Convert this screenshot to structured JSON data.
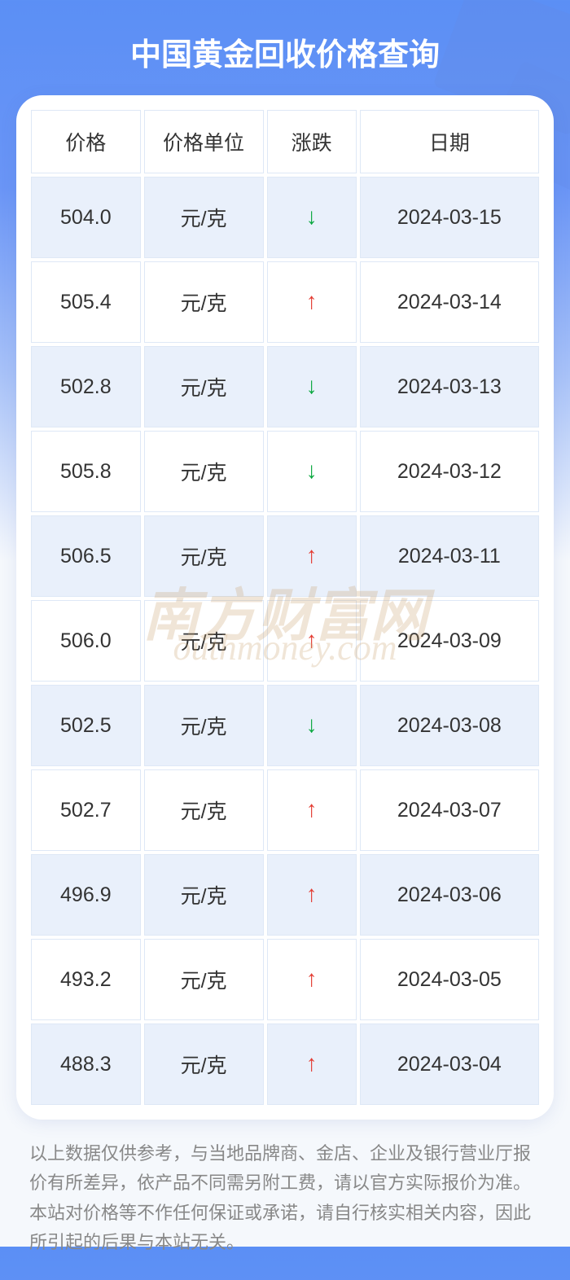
{
  "title": "中国黄金回收价格查询",
  "table": {
    "columns": [
      "价格",
      "价格单位",
      "涨跌",
      "日期"
    ],
    "rows": [
      {
        "price": "504.0",
        "unit": "元/克",
        "trend": "down",
        "date": "2024-03-15"
      },
      {
        "price": "505.4",
        "unit": "元/克",
        "trend": "up",
        "date": "2024-03-14"
      },
      {
        "price": "502.8",
        "unit": "元/克",
        "trend": "down",
        "date": "2024-03-13"
      },
      {
        "price": "505.8",
        "unit": "元/克",
        "trend": "down",
        "date": "2024-03-12"
      },
      {
        "price": "506.5",
        "unit": "元/克",
        "trend": "up",
        "date": "2024-03-11"
      },
      {
        "price": "506.0",
        "unit": "元/克",
        "trend": "up",
        "date": "2024-03-09"
      },
      {
        "price": "502.5",
        "unit": "元/克",
        "trend": "down",
        "date": "2024-03-08"
      },
      {
        "price": "502.7",
        "unit": "元/克",
        "trend": "up",
        "date": "2024-03-07"
      },
      {
        "price": "496.9",
        "unit": "元/克",
        "trend": "up",
        "date": "2024-03-06"
      },
      {
        "price": "493.2",
        "unit": "元/克",
        "trend": "up",
        "date": "2024-03-05"
      },
      {
        "price": "488.3",
        "unit": "元/克",
        "trend": "up",
        "date": "2024-03-04"
      }
    ]
  },
  "arrows": {
    "up": "↑",
    "down": "↓"
  },
  "colors": {
    "title_text": "#ffffff",
    "bg_gradient_top": "#5b8ff5",
    "bg_gradient_bottom": "#f5f8fc",
    "card_bg": "#ffffff",
    "row_even_bg": "#e9f0fb",
    "row_odd_bg": "#ffffff",
    "cell_border": "#dee8f6",
    "text": "#333333",
    "up_color": "#e43d33",
    "down_color": "#0aa83f",
    "disclaimer_text": "#888888",
    "watermark_color": "rgba(200,160,110,0.28)"
  },
  "watermark": {
    "main": "南方财富网",
    "sub": "outhmoney.com"
  },
  "disclaimer": "以上数据仅供参考，与当地品牌商、金店、企业及银行营业厅报价有所差异，依产品不同需另附工费，请以官方实际报价为准。本站对价格等不作任何保证或承诺，请自行核实相关内容，因此所引起的后果与本站无关。"
}
